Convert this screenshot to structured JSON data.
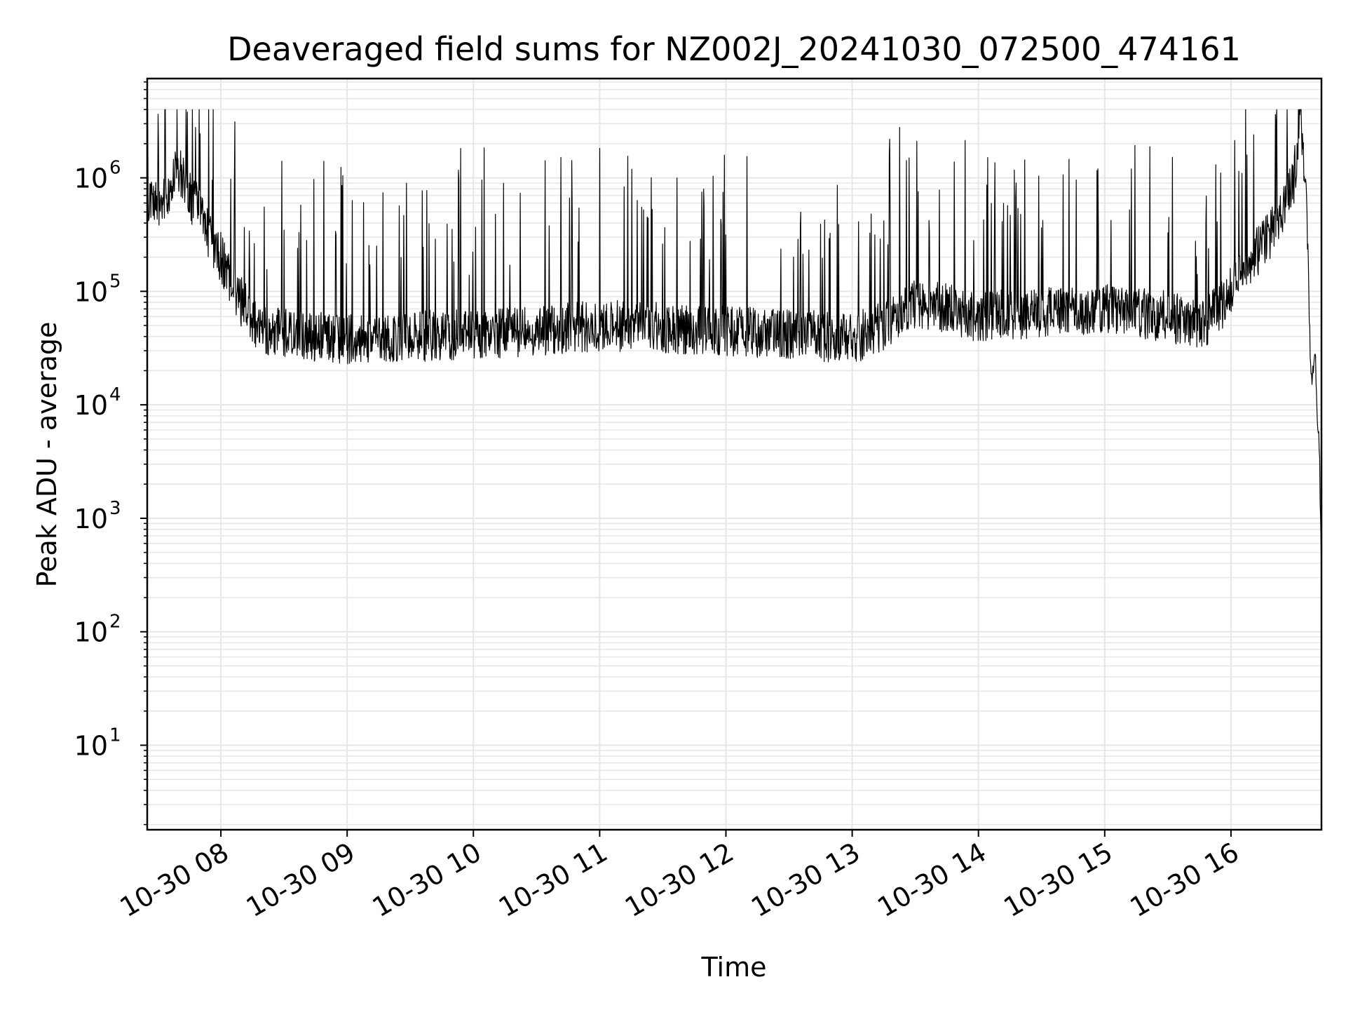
{
  "chart_data": {
    "type": "line",
    "title": "Deaveraged field sums for NZ002J_20241030_072500_474161",
    "xlabel": "Time",
    "ylabel": "Peak ADU - average",
    "yscale": "log",
    "grid": true,
    "grid_minor": true,
    "line_color": "#000000",
    "grid_color": "#e6e6e6",
    "xlim": [
      "2024-10-30 07:25",
      "2024-10-30 16:43"
    ],
    "ylim": [
      1.8,
      7500000
    ],
    "x_ticks": [
      {
        "time": "2024-10-30 08:00",
        "label": "10-30 08"
      },
      {
        "time": "2024-10-30 09:00",
        "label": "10-30 09"
      },
      {
        "time": "2024-10-30 10:00",
        "label": "10-30 10"
      },
      {
        "time": "2024-10-30 11:00",
        "label": "10-30 11"
      },
      {
        "time": "2024-10-30 12:00",
        "label": "10-30 12"
      },
      {
        "time": "2024-10-30 13:00",
        "label": "10-30 13"
      },
      {
        "time": "2024-10-30 14:00",
        "label": "10-30 14"
      },
      {
        "time": "2024-10-30 15:00",
        "label": "10-30 15"
      },
      {
        "time": "2024-10-30 16:00",
        "label": "10-30 16"
      }
    ],
    "y_ticks": [
      {
        "value": 10,
        "base": "10",
        "exp": "1"
      },
      {
        "value": 100,
        "base": "10",
        "exp": "2"
      },
      {
        "value": 1000,
        "base": "10",
        "exp": "3"
      },
      {
        "value": 10000,
        "base": "10",
        "exp": "4"
      },
      {
        "value": 100000,
        "base": "10",
        "exp": "5"
      },
      {
        "value": 1000000,
        "base": "10",
        "exp": "6"
      }
    ],
    "series": [
      {
        "x": [
          "2024-10-30 07:25",
          "2024-10-30 07:30",
          "2024-10-30 07:35",
          "2024-10-30 07:40",
          "2024-10-30 07:45",
          "2024-10-30 07:50",
          "2024-10-30 07:55",
          "2024-10-30 08:00",
          "2024-10-30 08:05",
          "2024-10-30 08:10",
          "2024-10-30 08:15",
          "2024-10-30 08:20",
          "2024-10-30 08:30",
          "2024-10-30 08:45",
          "2024-10-30 09:00",
          "2024-10-30 09:30",
          "2024-10-30 10:00",
          "2024-10-30 10:30",
          "2024-10-30 11:00",
          "2024-10-30 11:30",
          "2024-10-30 12:00",
          "2024-10-30 12:30",
          "2024-10-30 13:00",
          "2024-10-30 13:15",
          "2024-10-30 13:30",
          "2024-10-30 13:45",
          "2024-10-30 14:00",
          "2024-10-30 14:30",
          "2024-10-30 15:00",
          "2024-10-30 15:30",
          "2024-10-30 15:45",
          "2024-10-30 15:55",
          "2024-10-30 16:05",
          "2024-10-30 16:15",
          "2024-10-30 16:25",
          "2024-10-30 16:30",
          "2024-10-30 16:33",
          "2024-10-30 16:36",
          "2024-10-30 16:38",
          "2024-10-30 16:40",
          "2024-10-30 16:41",
          "2024-10-30 16:42",
          "2024-10-30 16:43"
        ],
        "y": [
          550000,
          600000,
          800000,
          1200000,
          700000,
          500000,
          300000,
          200000,
          120000,
          80000,
          55000,
          45000,
          42000,
          40000,
          38000,
          40000,
          42000,
          45000,
          50000,
          48000,
          45000,
          42000,
          38000,
          50000,
          80000,
          70000,
          60000,
          65000,
          70000,
          60000,
          50000,
          70000,
          150000,
          250000,
          500000,
          1000000,
          3500000,
          600000,
          15000,
          30000,
          8000,
          4000,
          300
        ]
      }
    ]
  }
}
